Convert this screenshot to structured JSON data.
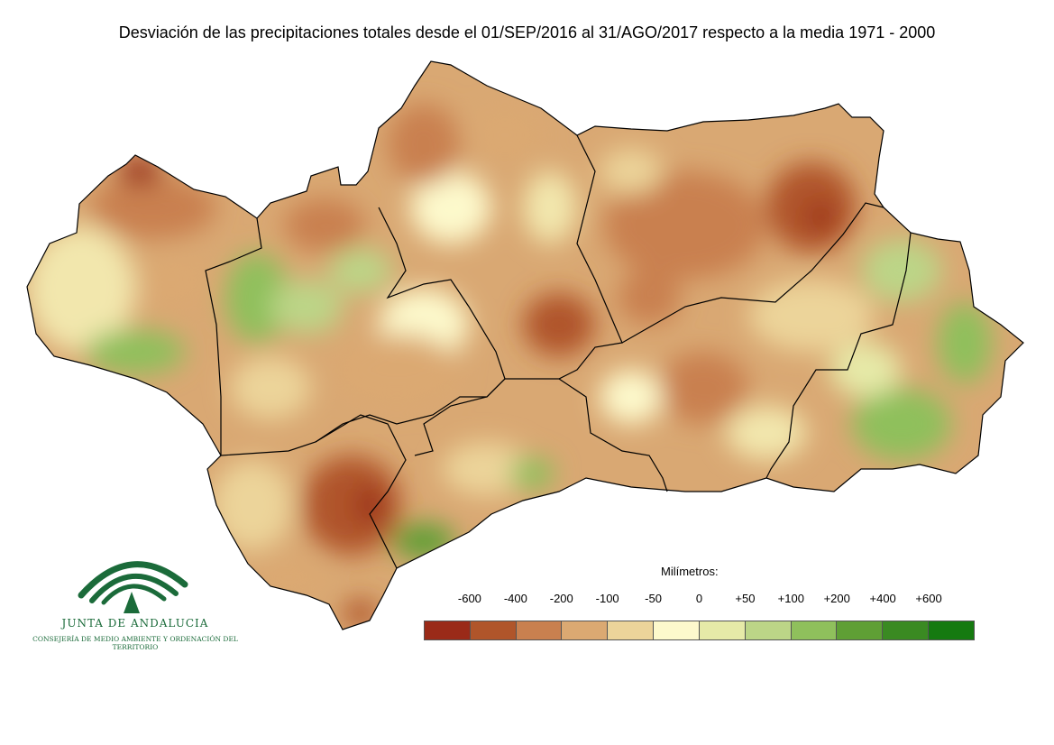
{
  "title": "Desviación de las precipitaciones totales desde el 01/SEP/2016 al 31/AGO/2017 respecto a la media 1971 - 2000",
  "legend": {
    "unit": "Milímetros:",
    "ticks": [
      "-600",
      "-400",
      "-200",
      "-100",
      "-50",
      "0",
      "+50",
      "+100",
      "+200",
      "+400",
      "+600"
    ],
    "colors": [
      "#9a2a18",
      "#b0552a",
      "#c9804f",
      "#dba972",
      "#ecd49a",
      "#fdf9cc",
      "#e6eaa8",
      "#bcd587",
      "#8fc05c",
      "#5f9f35",
      "#3a8a22",
      "#157a10"
    ]
  },
  "logo": {
    "name": "JUNTA DE ANDALUCIA",
    "department": "CONSEJERÍA DE MEDIO AMBIENTE Y ORDENACIÓN DEL TERRITORIO"
  }
}
